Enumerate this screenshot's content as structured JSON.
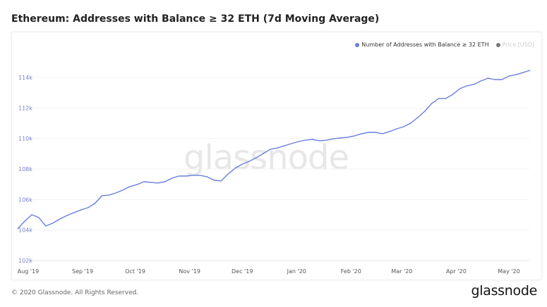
{
  "title": "Ethereum: Addresses with Balance ≥ 32 ETH (7d Moving Average)",
  "legend": [
    {
      "label": "Number of Addresses with Balance ≥ 32 ETH",
      "color": "#6b7fde",
      "active": true
    },
    {
      "label": "Price [USD]",
      "color": "#777777",
      "active": false
    }
  ],
  "watermark": "glassnode",
  "footer": "© 2020 Glassnode. All Rights Reserved.",
  "logo": "glassnode",
  "chart_data": {
    "type": "line",
    "title": "Ethereum: Addresses with Balance ≥ 32 ETH (7d Moving Average)",
    "xlabel": "",
    "ylabel": "",
    "ylim": [
      102000,
      114000
    ],
    "grid": true,
    "legend_position": "top-right",
    "x_ticks": [
      {
        "date": "2019-08-01",
        "label": "Aug '19"
      },
      {
        "date": "2019-09-01",
        "label": "Sep '19"
      },
      {
        "date": "2019-10-01",
        "label": "Oct '19"
      },
      {
        "date": "2019-11-01",
        "label": "Nov '19"
      },
      {
        "date": "2019-12-01",
        "label": "Dec '19"
      },
      {
        "date": "2020-01-01",
        "label": "Jan '20"
      },
      {
        "date": "2020-02-01",
        "label": "Feb '20"
      },
      {
        "date": "2020-03-01",
        "label": "Mar '20"
      },
      {
        "date": "2020-04-01",
        "label": "Apr '20"
      },
      {
        "date": "2020-05-01",
        "label": "May '20"
      }
    ],
    "y_ticks": [
      {
        "value": 102000,
        "label": "102k"
      },
      {
        "value": 104000,
        "label": "104k"
      },
      {
        "value": 106000,
        "label": "106k"
      },
      {
        "value": 108000,
        "label": "108k"
      },
      {
        "value": 110000,
        "label": "110k"
      },
      {
        "value": 112000,
        "label": "112k"
      },
      {
        "value": 114000,
        "label": "114k"
      }
    ],
    "series": [
      {
        "name": "Number of Addresses with Balance ≥ 32 ETH",
        "color": "#6b7fde",
        "start_date": "2019-07-26",
        "step_days": 4,
        "values": [
          104080,
          104580,
          105000,
          104820,
          104260,
          104450,
          104720,
          104950,
          105140,
          105320,
          105460,
          105740,
          106250,
          106290,
          106430,
          106620,
          106850,
          106980,
          107170,
          107120,
          107080,
          107170,
          107400,
          107540,
          107540,
          107580,
          107580,
          107490,
          107260,
          107220,
          107680,
          108050,
          108320,
          108510,
          108740,
          109010,
          109290,
          109380,
          109520,
          109660,
          109800,
          109890,
          109940,
          109850,
          109890,
          109980,
          110030,
          110080,
          110170,
          110310,
          110400,
          110400,
          110310,
          110450,
          110630,
          110770,
          111000,
          111370,
          111780,
          112290,
          112620,
          112620,
          112890,
          113260,
          113450,
          113540,
          113770,
          113950,
          113860,
          113860,
          114090,
          114180,
          114320,
          114460
        ]
      }
    ]
  }
}
